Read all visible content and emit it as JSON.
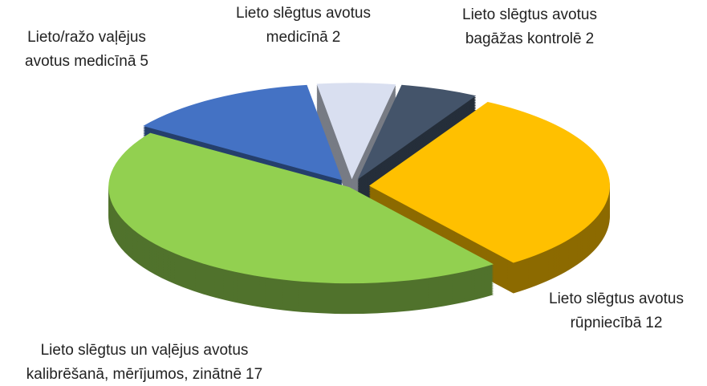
{
  "chart_data": {
    "type": "pie3d",
    "categories": [
      "Lieto slēgtus avotus medicīnā",
      "Lieto slēgtus avotus bagāžas kontrolē",
      "Lieto slēgtus avotus rūpniecībā",
      "Lieto slēgtus un vaļējus avotus kalibrēšanā, mērījumos, zinātnē",
      "Lieto/ražo vaļējus avotus medicīnā"
    ],
    "values": [
      2,
      2,
      12,
      17,
      5
    ],
    "colors": [
      "#d9dff0",
      "#44546a",
      "#ffc000",
      "#92d050",
      "#4472c4"
    ]
  }
}
